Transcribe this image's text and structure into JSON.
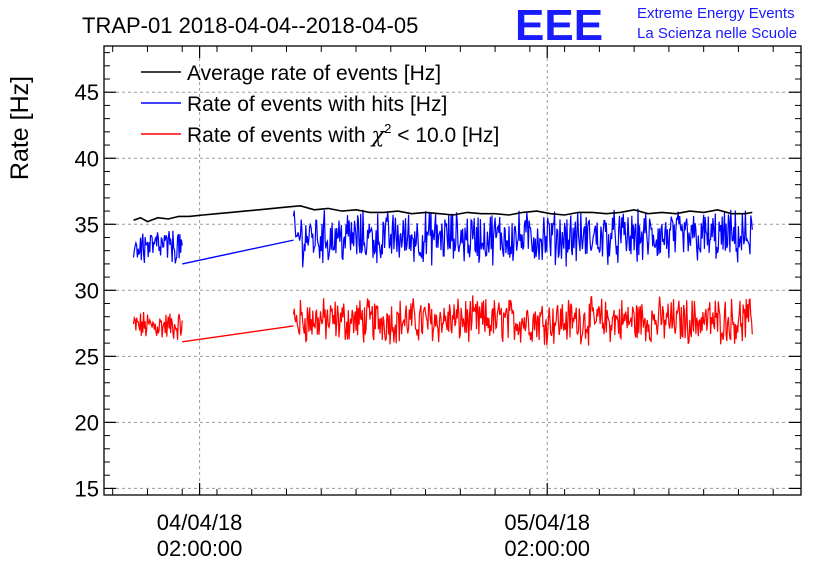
{
  "chart_data": {
    "type": "line",
    "title": "TRAP-01 2018-04-04--2018-04-05",
    "ylabel": "Rate [Hz]",
    "xlabel": "",
    "ylim": [
      14.5,
      48.5
    ],
    "yticks": [
      15,
      20,
      25,
      30,
      35,
      40,
      45
    ],
    "xlim_hours": [
      -0.25,
      19.8
    ],
    "xticks": [
      {
        "hour": 2.5,
        "date": "04/04/18",
        "time": "02:00:00"
      },
      {
        "hour": 12.5,
        "date": "05/04/18",
        "time": "02:00:00"
      }
    ],
    "grid": true,
    "legend_placement": "top-left",
    "series": [
      {
        "name": "Average rate of events [Hz]",
        "color": "#000000",
        "x": [
          0.6,
          0.8,
          1.0,
          1.3,
          1.6,
          1.9,
          2.2,
          2.6,
          3.0,
          3.4,
          3.8,
          4.2,
          4.6,
          5.0,
          5.4,
          5.8,
          6.2,
          6.6,
          7.0,
          7.4,
          7.8,
          8.2,
          8.6,
          9.0,
          9.4,
          9.8,
          10.2,
          10.6,
          11.0,
          11.4,
          11.8,
          12.2,
          12.6,
          13.0,
          13.4,
          13.8,
          14.2,
          14.6,
          15.0,
          15.4,
          15.8,
          16.2,
          16.6,
          17.0,
          17.4,
          17.8,
          18.2,
          18.4
        ],
        "values": [
          35.3,
          35.5,
          35.2,
          35.5,
          35.4,
          35.6,
          35.6,
          35.7,
          35.8,
          35.9,
          36.0,
          36.1,
          36.2,
          36.3,
          36.4,
          36.1,
          36.2,
          36.0,
          36.1,
          35.9,
          35.9,
          36.0,
          35.8,
          35.9,
          35.8,
          35.7,
          35.9,
          35.8,
          35.8,
          35.7,
          35.9,
          36.0,
          35.8,
          35.7,
          35.9,
          35.9,
          35.8,
          35.9,
          36.1,
          35.8,
          35.9,
          35.8,
          36.0,
          35.9,
          36.1,
          35.8,
          35.8,
          35.9
        ]
      },
      {
        "name": "Rate of events with hits [Hz]",
        "color": "#0000ff",
        "segments": [
          {
            "x_start": 0.6,
            "x_end": 2.0,
            "mean": 33.3,
            "min": 31.5,
            "max": 35.0
          },
          {
            "x_start": 5.2,
            "x_end": 18.4,
            "mean": 34.0,
            "min": 31.3,
            "max": 36.4
          }
        ],
        "gap": {
          "x": [
            2.0,
            5.2
          ],
          "values": [
            32.0,
            33.8
          ]
        }
      },
      {
        "name": "Rate of events with χ² < 10.0 [Hz]",
        "color": "#ff0000",
        "segments": [
          {
            "x_start": 0.6,
            "x_end": 2.0,
            "mean": 27.3,
            "min": 25.8,
            "max": 28.7
          },
          {
            "x_start": 5.2,
            "x_end": 18.4,
            "mean": 27.7,
            "min": 25.6,
            "max": 30.0
          }
        ],
        "gap": {
          "x": [
            2.0,
            5.2
          ],
          "values": [
            26.1,
            27.3
          ]
        }
      }
    ],
    "legend": [
      {
        "label_main": "Rate of events with ",
        "label_chi": "χ",
        "label_sup": "2",
        "label_rest": " < 10.0 [Hz]"
      }
    ]
  },
  "logo": {
    "letters": "EEE",
    "line1": "Extreme Energy Events",
    "line2": "La Scienza nelle Scuole",
    "color": "#1a1aff"
  }
}
